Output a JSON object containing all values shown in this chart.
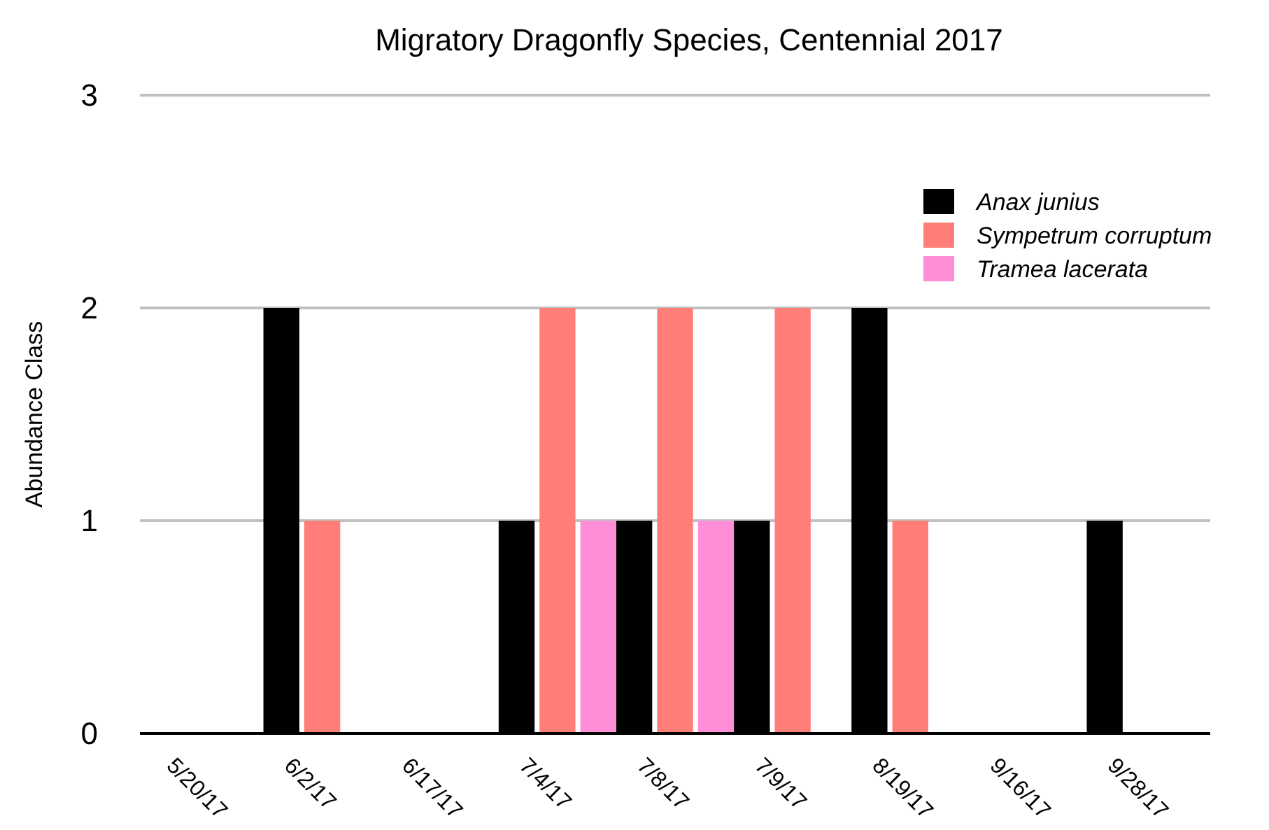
{
  "chart_data": {
    "type": "bar",
    "title": "Migratory Dragonfly Species, Centennial 2017",
    "ylabel": "Abundance Class",
    "categories": [
      "5/20/17",
      "6/2/17",
      "6/17/17",
      "7/4/17",
      "7/8/17",
      "7/9/17",
      "8/19/17",
      "9/16/17",
      "9/28/17"
    ],
    "series": [
      {
        "name": "Anax junius",
        "color": "#000000",
        "values": [
          0,
          2,
          0,
          1,
          1,
          1,
          2,
          0,
          1
        ]
      },
      {
        "name": "Sympetrum corruptum",
        "color": "#ff7f78",
        "values": [
          0,
          1,
          0,
          2,
          2,
          2,
          1,
          0,
          0
        ]
      },
      {
        "name": "Tramea lacerata",
        "color": "#ff8ed9",
        "values": [
          0,
          0,
          0,
          1,
          1,
          0,
          0,
          0,
          0
        ]
      }
    ],
    "ylim": [
      0,
      3
    ],
    "yticks": [
      0,
      1,
      2,
      3
    ],
    "grid": "y",
    "legend": "top right"
  }
}
